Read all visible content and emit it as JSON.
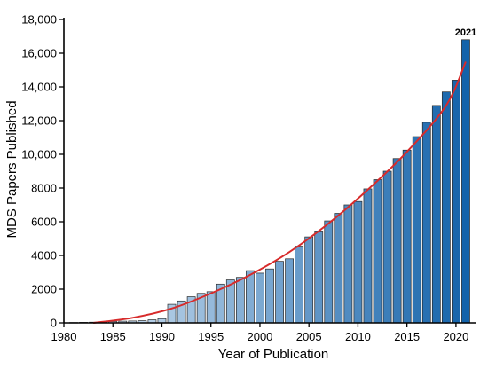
{
  "chart_data": {
    "type": "bar",
    "title": "",
    "xlabel": "Year of Publication",
    "ylabel": "MDS Papers Published",
    "xlim": [
      1980,
      2022
    ],
    "ylim": [
      0,
      18000
    ],
    "x_ticks": [
      1980,
      1985,
      1990,
      1995,
      2000,
      2005,
      2010,
      2015,
      2020
    ],
    "x_tick_labels": [
      "1980",
      "1985",
      "1990",
      "1995",
      "2000",
      "2005",
      "2010",
      "2015",
      "2020"
    ],
    "y_ticks": [
      0,
      2000,
      4000,
      6000,
      8000,
      10000,
      12000,
      14000,
      16000,
      18000
    ],
    "y_tick_labels": [
      "0",
      "2000",
      "4000",
      "6000",
      "8000",
      "10,000",
      "12,000",
      "14,000",
      "16,000",
      "18,000"
    ],
    "grid": false,
    "legend": "none",
    "years": [
      1981,
      1982,
      1983,
      1984,
      1985,
      1986,
      1987,
      1988,
      1989,
      1990,
      1991,
      1992,
      1993,
      1994,
      1995,
      1996,
      1997,
      1998,
      1999,
      2000,
      2001,
      2002,
      2003,
      2004,
      2005,
      2006,
      2007,
      2008,
      2009,
      2010,
      2011,
      2012,
      2013,
      2014,
      2015,
      2016,
      2017,
      2018,
      2019,
      2020,
      2021
    ],
    "values": [
      20,
      30,
      40,
      60,
      80,
      100,
      110,
      130,
      180,
      250,
      1100,
      1300,
      1550,
      1750,
      1850,
      2300,
      2550,
      2700,
      3100,
      2950,
      3200,
      3650,
      3800,
      4550,
      5100,
      5450,
      6050,
      6500,
      7000,
      7200,
      7950,
      8500,
      9000,
      9750,
      10250,
      11050,
      11900,
      12900,
      13700,
      14400,
      16800
    ],
    "trendline": {
      "type": "quadratic",
      "x": [
        1983,
        1987,
        1991,
        1995,
        1999,
        2003,
        2007,
        2011,
        2015,
        2019,
        2021
      ],
      "y": [
        0,
        300,
        850,
        1750,
        2850,
        4200,
        5900,
        7900,
        10150,
        12900,
        15500
      ]
    },
    "annotations": [
      {
        "year": 2021,
        "text": "2021"
      }
    ],
    "colors": {
      "bar_start": "#dbe8f5",
      "bar_end": "#1463aa",
      "bar_stroke": "#2a2a2a",
      "trend": "#d72b2b",
      "axis": "#000000"
    }
  }
}
